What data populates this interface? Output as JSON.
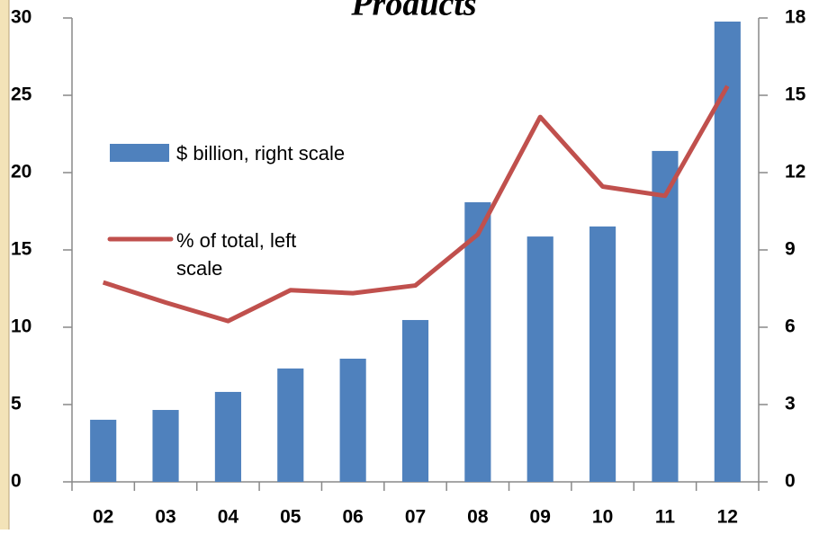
{
  "chart_data": {
    "type": "bar_line",
    "title": "Products",
    "categories": [
      "02",
      "03",
      "04",
      "05",
      "06",
      "07",
      "08",
      "09",
      "10",
      "11",
      "12"
    ],
    "series": [
      {
        "name": "$ billion, right scale",
        "type": "bar",
        "axis": "y2",
        "color": "#4f81bd",
        "values": [
          2.41,
          2.79,
          3.49,
          4.4,
          4.78,
          6.28,
          10.85,
          9.52,
          9.91,
          12.84,
          17.86
        ]
      },
      {
        "name": "% of total, left scale",
        "type": "line",
        "axis": "y",
        "color": "#c0504d",
        "values": [
          12.9,
          11.6,
          10.4,
          12.4,
          12.2,
          12.7,
          16.0,
          23.6,
          19.1,
          18.5,
          25.6
        ]
      }
    ],
    "ylim": [
      0,
      30
    ],
    "yticks": [
      0,
      5,
      10,
      15,
      20,
      25,
      30
    ],
    "y2lim": [
      0,
      18
    ],
    "y2ticks": [
      0,
      3,
      6,
      9,
      12,
      15,
      18
    ]
  }
}
